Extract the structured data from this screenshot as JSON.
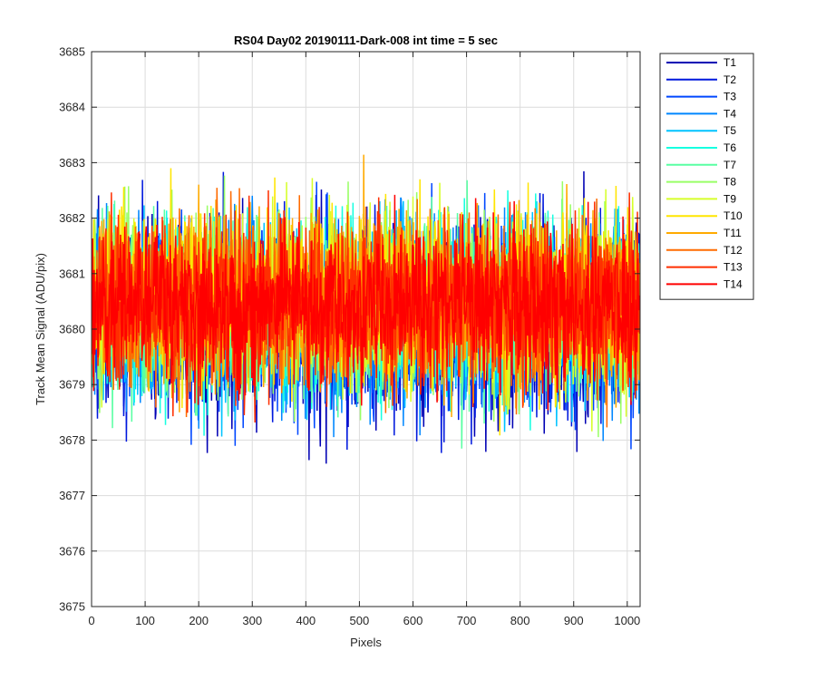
{
  "chart_data": {
    "type": "line",
    "title": "RS04 Day02 20190111-Dark-008 int time = 5 sec",
    "xlabel": "Pixels",
    "ylabel": "Track Mean Signal (ADU/pix)",
    "xlim": [
      0,
      1024
    ],
    "ylim": [
      3675,
      3685
    ],
    "xticks": [
      "0",
      "100",
      "200",
      "300",
      "400",
      "500",
      "600",
      "700",
      "800",
      "900",
      "1000"
    ],
    "yticks": [
      "3675",
      "3676",
      "3677",
      "3678",
      "3679",
      "3680",
      "3681",
      "3682",
      "3683",
      "3684",
      "3685"
    ],
    "grid": true,
    "legend_position": "outside-top-right",
    "n_points": 1024,
    "series": [
      {
        "name": "T1",
        "color": "#0000b4",
        "mean": 3680.1,
        "std": 0.85
      },
      {
        "name": "T2",
        "color": "#0018dd",
        "mean": 3680.15,
        "std": 0.85
      },
      {
        "name": "T3",
        "color": "#0047ff",
        "mean": 3680.2,
        "std": 0.82
      },
      {
        "name": "T4",
        "color": "#0087ff",
        "mean": 3680.25,
        "std": 0.8
      },
      {
        "name": "T5",
        "color": "#00c3ff",
        "mean": 3680.3,
        "std": 0.8
      },
      {
        "name": "T6",
        "color": "#16ffe1",
        "mean": 3680.35,
        "std": 0.78
      },
      {
        "name": "T7",
        "color": "#59ffa3",
        "mean": 3680.4,
        "std": 0.78
      },
      {
        "name": "T8",
        "color": "#99ff66",
        "mean": 3680.45,
        "std": 0.78
      },
      {
        "name": "T9",
        "color": "#d6ff2a",
        "mean": 3680.5,
        "std": 0.78
      },
      {
        "name": "T10",
        "color": "#ffe500",
        "mean": 3680.55,
        "std": 0.78
      },
      {
        "name": "T11",
        "color": "#ffaa00",
        "mean": 3680.55,
        "std": 0.76
      },
      {
        "name": "T12",
        "color": "#ff6b00",
        "mean": 3680.5,
        "std": 0.74
      },
      {
        "name": "T13",
        "color": "#ff2f00",
        "mean": 3680.45,
        "std": 0.72
      },
      {
        "name": "T14",
        "color": "#ff0000",
        "mean": 3680.4,
        "std": 0.7
      }
    ]
  }
}
